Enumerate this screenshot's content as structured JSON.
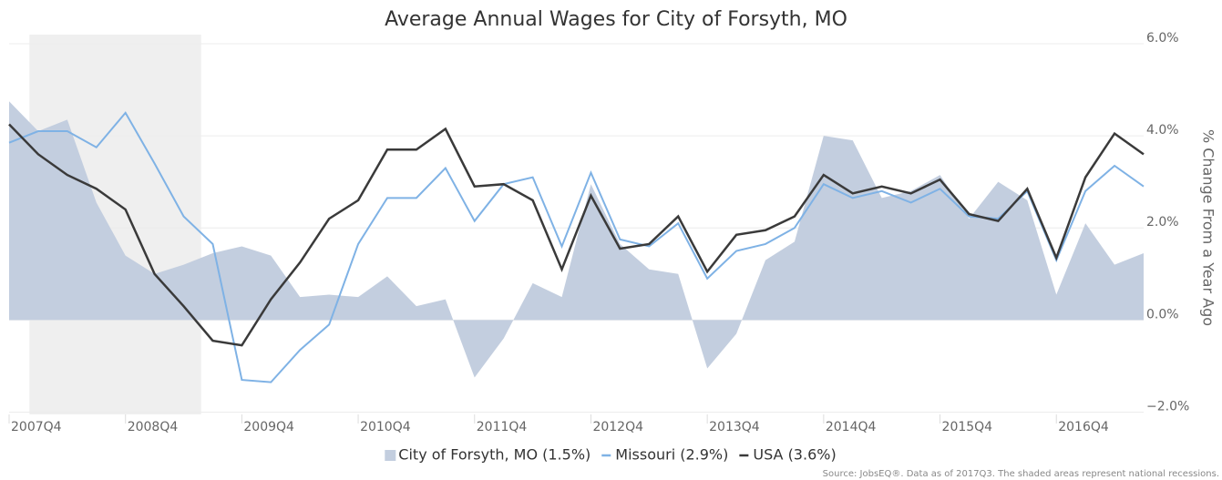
{
  "chart_data": {
    "type": "line",
    "title": "Average Annual Wages for City of Forsyth, MO",
    "y_axis_label": "% Change From a Year Ago",
    "source": "Source: JobsEQ®. Data as of 2017Q3. The shaded areas represent national recessions.",
    "categories": [
      "2007Q4",
      null,
      null,
      null,
      "2008Q4",
      null,
      null,
      null,
      "2009Q4",
      null,
      null,
      null,
      "2010Q4",
      null,
      null,
      null,
      "2011Q4",
      null,
      null,
      null,
      "2012Q4",
      null,
      null,
      null,
      "2013Q4",
      null,
      null,
      null,
      "2014Q4",
      null,
      null,
      null,
      "2015Q4",
      null,
      null,
      null,
      "2016Q4",
      null,
      null,
      null
    ],
    "recession_x": [
      0.7,
      6.6
    ],
    "ylim": [
      -2.05,
      6
    ],
    "yticks": [
      {
        "value": -2,
        "label": "−2.0%"
      },
      {
        "value": 0,
        "label": "0.0%"
      },
      {
        "value": 2,
        "label": "2.0%"
      },
      {
        "value": 4,
        "label": "4.0%"
      },
      {
        "value": 6,
        "label": "6.0%"
      }
    ],
    "grid": true,
    "series": [
      {
        "name": "City of Forsyth, MO (1.5%)",
        "style": "area",
        "color": "#c3cedf",
        "values": [
          4.75,
          4.1,
          4.35,
          2.55,
          1.4,
          1.0,
          1.2,
          1.45,
          1.6,
          1.4,
          0.5,
          0.55,
          0.5,
          0.95,
          0.3,
          0.45,
          -1.25,
          -0.4,
          0.8,
          0.5,
          2.95,
          1.65,
          1.1,
          1.0,
          -1.05,
          -0.3,
          1.3,
          1.7,
          4.0,
          3.9,
          2.65,
          2.8,
          3.15,
          2.2,
          3.0,
          2.6,
          0.55,
          2.1,
          1.2,
          1.45
        ]
      },
      {
        "name": "Missouri (2.9%)",
        "style": "line",
        "color": "#7fb2e5",
        "values": [
          3.85,
          4.1,
          4.1,
          3.75,
          4.5,
          3.4,
          2.25,
          1.65,
          -1.3,
          -1.35,
          -0.65,
          -0.1,
          1.65,
          2.65,
          2.65,
          3.3,
          2.15,
          2.95,
          3.1,
          1.6,
          3.2,
          1.75,
          1.6,
          2.1,
          0.9,
          1.5,
          1.65,
          2.0,
          2.95,
          2.65,
          2.8,
          2.55,
          2.85,
          2.25,
          2.2,
          2.8,
          1.3,
          2.8,
          3.35,
          2.9
        ]
      },
      {
        "name": "USA (3.6%)",
        "style": "line",
        "color": "#3a3a3a",
        "values": [
          4.25,
          3.6,
          3.15,
          2.85,
          2.4,
          1.0,
          0.3,
          -0.45,
          -0.55,
          0.45,
          1.25,
          2.2,
          2.6,
          3.7,
          3.7,
          4.15,
          2.9,
          2.95,
          2.6,
          1.1,
          2.7,
          1.55,
          1.65,
          2.25,
          1.05,
          1.85,
          1.95,
          2.25,
          3.15,
          2.75,
          2.9,
          2.75,
          3.05,
          2.3,
          2.15,
          2.85,
          1.35,
          3.1,
          4.05,
          3.6
        ]
      }
    ]
  }
}
